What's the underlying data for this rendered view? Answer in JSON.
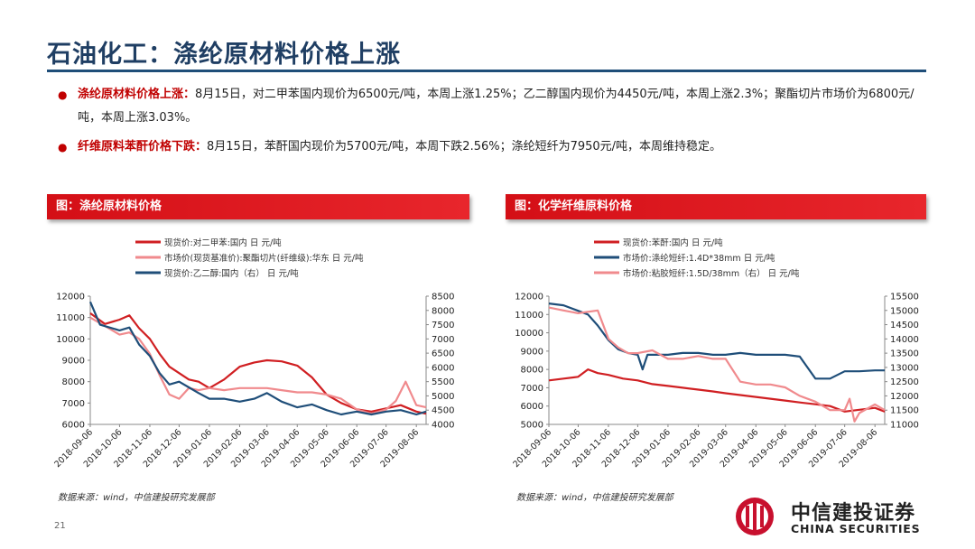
{
  "page": {
    "title": "石油化工：涤纶原材料价格上涨",
    "page_number": "21",
    "brand_cn": "中信建投证券",
    "brand_en": "CHINA SECURITIES",
    "accent_color": "#d40f16",
    "title_color": "#1f3e63"
  },
  "bullets": [
    {
      "head": "涤纶原材料价格上涨：",
      "text": "8月15日，对二甲苯国内现价为6500元/吨，本周上涨1.25%；乙二醇国内现价为4450元/吨，本周上涨2.3%；聚酯切片市场价为6800元/吨，本周上涨3.03%。"
    },
    {
      "head": "纤维原料苯酐价格下跌：",
      "text": "8月15日，苯酐国内现价为5700元/吨，本周下跌2.56%；涤纶短纤为7950元/吨，本周维持稳定。"
    }
  ],
  "chart_titles": [
    "图：涤纶原材料价格",
    "图：化学纤维原料价格"
  ],
  "sources": [
    "数据来源：wind，中信建投研究发展部",
    "数据来源：wind，中信建投研究发展部"
  ],
  "chart_data": [
    {
      "type": "line",
      "x_ticks": [
        "2018-09-06",
        "2018-10-06",
        "2018-11-06",
        "2018-12-06",
        "2019-01-06",
        "2019-02-06",
        "2019-03-06",
        "2019-04-06",
        "2019-05-06",
        "2019-06-06",
        "2019-07-06",
        "2019-08-06"
      ],
      "x_range": [
        "2018-09-06",
        "2019-08-16"
      ],
      "y_left": {
        "min": 6000,
        "max": 12000,
        "ticks": [
          6000,
          7000,
          8000,
          9000,
          10000,
          11000,
          12000
        ]
      },
      "y_right": {
        "min": 4000,
        "max": 8500,
        "ticks": [
          4000,
          4500,
          5000,
          5500,
          6000,
          6500,
          7000,
          7500,
          8000,
          8500
        ]
      },
      "series": [
        {
          "name": "现货价:对二甲苯:国内 日 元/吨",
          "axis": "left",
          "color": "#d01f22",
          "x": [
            "2018-09-06",
            "2018-09-21",
            "2018-10-06",
            "2018-10-16",
            "2018-10-26",
            "2018-11-06",
            "2018-11-16",
            "2018-11-26",
            "2018-12-06",
            "2018-12-16",
            "2018-12-26",
            "2019-01-06",
            "2019-01-21",
            "2019-02-06",
            "2019-02-21",
            "2019-03-06",
            "2019-03-21",
            "2019-04-06",
            "2019-04-21",
            "2019-05-06",
            "2019-05-21",
            "2019-06-06",
            "2019-06-21",
            "2019-07-06",
            "2019-07-21",
            "2019-08-06",
            "2019-08-16"
          ],
          "y": [
            11200,
            10700,
            10900,
            11100,
            10500,
            10000,
            9300,
            8700,
            8400,
            8100,
            8000,
            7700,
            8100,
            8700,
            8900,
            9000,
            8950,
            8750,
            8200,
            7400,
            7000,
            6700,
            6600,
            6750,
            6900,
            6600,
            6500
          ]
        },
        {
          "name": "市场价(现货基准价):聚酯切片(纤维级):华东 日 元/吨",
          "axis": "left",
          "color": "#f08a8d",
          "x": [
            "2018-09-06",
            "2018-09-21",
            "2018-10-06",
            "2018-10-16",
            "2018-10-26",
            "2018-11-06",
            "2018-11-16",
            "2018-11-26",
            "2018-12-06",
            "2018-12-16",
            "2018-12-26",
            "2019-01-06",
            "2019-01-21",
            "2019-02-06",
            "2019-02-21",
            "2019-03-06",
            "2019-03-21",
            "2019-04-06",
            "2019-04-21",
            "2019-05-06",
            "2019-05-21",
            "2019-06-06",
            "2019-06-21",
            "2019-07-06",
            "2019-07-16",
            "2019-07-26",
            "2019-08-06",
            "2019-08-16"
          ],
          "y": [
            11000,
            10600,
            10200,
            10300,
            10000,
            9300,
            8300,
            7400,
            7200,
            7700,
            7600,
            7700,
            7600,
            7700,
            7700,
            7700,
            7600,
            7500,
            7500,
            7400,
            7200,
            6700,
            6500,
            6700,
            7100,
            8000,
            6900,
            6800
          ]
        },
        {
          "name": "现货价:乙二醇:国内（右） 日 元/吨",
          "axis": "right",
          "color": "#1f4e79",
          "x": [
            "2018-09-06",
            "2018-09-16",
            "2018-10-06",
            "2018-10-16",
            "2018-10-26",
            "2018-11-06",
            "2018-11-16",
            "2018-11-26",
            "2018-12-06",
            "2018-12-16",
            "2018-12-26",
            "2019-01-06",
            "2019-01-21",
            "2019-02-06",
            "2019-02-21",
            "2019-03-06",
            "2019-03-21",
            "2019-04-06",
            "2019-04-21",
            "2019-05-06",
            "2019-05-21",
            "2019-06-06",
            "2019-06-21",
            "2019-07-06",
            "2019-07-21",
            "2019-08-06",
            "2019-08-16"
          ],
          "y": [
            8300,
            7500,
            7300,
            7400,
            6800,
            6400,
            5800,
            5400,
            5500,
            5300,
            5100,
            4900,
            4900,
            4800,
            4900,
            5100,
            4800,
            4600,
            4700,
            4500,
            4350,
            4450,
            4350,
            4450,
            4500,
            4350,
            4450
          ]
        }
      ]
    },
    {
      "type": "line",
      "x_ticks": [
        "2018-09-06",
        "2018-10-06",
        "2018-11-06",
        "2018-12-06",
        "2019-01-06",
        "2019-02-06",
        "2019-03-06",
        "2019-04-06",
        "2019-05-06",
        "2019-06-06",
        "2019-07-06",
        "2019-08-06"
      ],
      "x_range": [
        "2018-09-06",
        "2019-08-16"
      ],
      "y_left": {
        "min": 5000,
        "max": 12000,
        "ticks": [
          5000,
          6000,
          7000,
          8000,
          9000,
          10000,
          11000,
          12000
        ]
      },
      "y_right": {
        "min": 11000,
        "max": 15500,
        "ticks": [
          11000,
          11500,
          12000,
          12500,
          13000,
          13500,
          14000,
          14500,
          15000,
          15500
        ]
      },
      "series": [
        {
          "name": "现货价:苯酐:国内 日 元/吨",
          "axis": "left",
          "color": "#d01f22",
          "x": [
            "2018-09-06",
            "2018-09-21",
            "2018-10-06",
            "2018-10-16",
            "2018-10-26",
            "2018-11-06",
            "2018-11-21",
            "2018-12-06",
            "2018-12-21",
            "2019-01-06",
            "2019-01-21",
            "2019-02-06",
            "2019-02-21",
            "2019-03-06",
            "2019-03-21",
            "2019-04-06",
            "2019-04-21",
            "2019-05-06",
            "2019-05-21",
            "2019-06-06",
            "2019-06-21",
            "2019-07-06",
            "2019-07-21",
            "2019-08-06",
            "2019-08-16"
          ],
          "y": [
            7400,
            7500,
            7600,
            8000,
            7800,
            7700,
            7500,
            7400,
            7200,
            7100,
            7000,
            6900,
            6800,
            6700,
            6600,
            6500,
            6400,
            6300,
            6200,
            6100,
            6000,
            5700,
            5800,
            5900,
            5700
          ]
        },
        {
          "name": "市场价:涤纶短纤:1.4D*38mm 日 元/吨",
          "axis": "left",
          "color": "#1f4e79",
          "x": [
            "2018-09-06",
            "2018-09-21",
            "2018-10-06",
            "2018-10-16",
            "2018-10-26",
            "2018-11-06",
            "2018-11-16",
            "2018-11-26",
            "2018-12-06",
            "2018-12-11",
            "2018-12-16",
            "2019-01-06",
            "2019-01-21",
            "2019-02-06",
            "2019-02-21",
            "2019-03-06",
            "2019-03-21",
            "2019-04-06",
            "2019-04-21",
            "2019-05-06",
            "2019-05-21",
            "2019-06-06",
            "2019-06-21",
            "2019-07-06",
            "2019-07-21",
            "2019-08-06",
            "2019-08-16"
          ],
          "y": [
            11600,
            11500,
            11200,
            11000,
            10400,
            9600,
            9100,
            8900,
            8800,
            8000,
            8800,
            8800,
            8900,
            8900,
            8800,
            8800,
            8900,
            8800,
            8800,
            8800,
            8700,
            7500,
            7500,
            7900,
            7900,
            7950,
            7950
          ]
        },
        {
          "name": "市场价:粘胶短纤:1.5D/38mm（右） 日 元/吨",
          "axis": "right",
          "color": "#f08a8d",
          "x": [
            "2018-09-06",
            "2018-09-21",
            "2018-10-06",
            "2018-10-26",
            "2018-11-06",
            "2018-11-16",
            "2018-11-26",
            "2018-12-06",
            "2018-12-21",
            "2019-01-06",
            "2019-01-21",
            "2019-02-06",
            "2019-02-21",
            "2019-03-06",
            "2019-03-21",
            "2019-04-06",
            "2019-04-21",
            "2019-05-06",
            "2019-05-21",
            "2019-06-06",
            "2019-06-21",
            "2019-07-06",
            "2019-07-11",
            "2019-07-16",
            "2019-07-21",
            "2019-08-06",
            "2019-08-16"
          ],
          "y": [
            15100,
            15000,
            14900,
            15000,
            14000,
            13700,
            13500,
            13500,
            13600,
            13300,
            13300,
            13400,
            13300,
            13300,
            12500,
            12400,
            12400,
            12300,
            12000,
            11800,
            11500,
            11500,
            11900,
            11100,
            11400,
            11700,
            11500
          ]
        }
      ]
    }
  ]
}
